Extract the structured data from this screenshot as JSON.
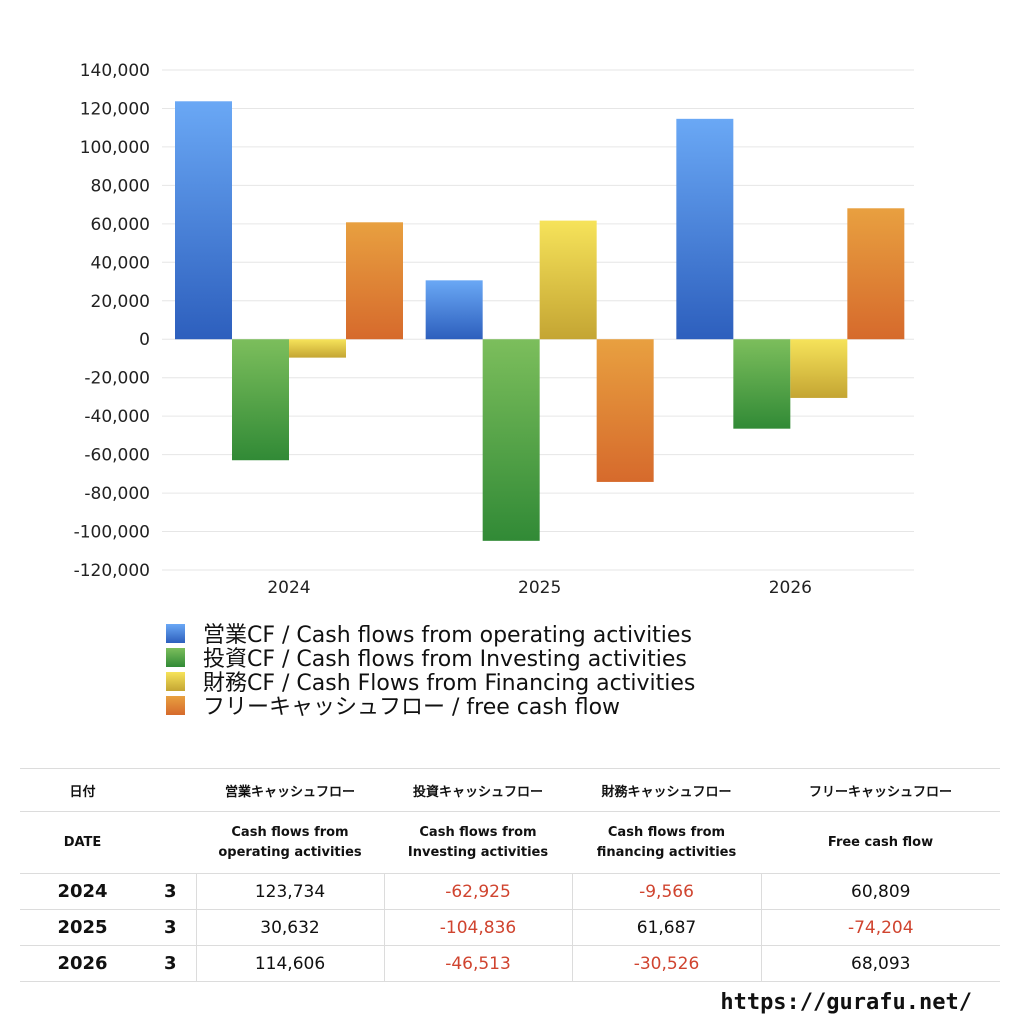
{
  "chart_data": {
    "type": "bar",
    "categories": [
      "2024",
      "2025",
      "2026"
    ],
    "ylim": [
      -120000,
      140000
    ],
    "yticks": [
      140000,
      120000,
      100000,
      80000,
      60000,
      40000,
      20000,
      0,
      -20000,
      -40000,
      -60000,
      -80000,
      -100000,
      -120000
    ],
    "ytick_labels": [
      "140,000",
      "120,000",
      "100,000",
      "80,000",
      "60,000",
      "40,000",
      "20,000",
      "0",
      "-20,000",
      "-40,000",
      "-60,000",
      "-80,000",
      "-100,000",
      "-120,000"
    ],
    "grid": true,
    "legend_position": "bottom-left",
    "series": [
      {
        "name": "営業CF / Cash flows from operating activities",
        "values": [
          123734,
          30632,
          114606
        ],
        "color_top": "#6aa8f5",
        "color_bottom": "#2d5fbd"
      },
      {
        "name": "投資CF / Cash flows from Investing activities",
        "values": [
          -62925,
          -104836,
          -46513
        ],
        "color_top": "#7cbe5c",
        "color_bottom": "#318a36"
      },
      {
        "name": "財務CF / Cash Flows from Financing activities",
        "values": [
          -9566,
          61687,
          -30526
        ],
        "color_top": "#f6e35a",
        "color_bottom": "#c4a533"
      },
      {
        "name": "フリーキャッシュフロー / free cash flow",
        "values": [
          60809,
          -74204,
          68093
        ],
        "color_top": "#e8a040",
        "color_bottom": "#d66a2c"
      }
    ]
  },
  "table": {
    "headers_jp": [
      "日付",
      "",
      "営業キャッシュフロー",
      "投資キャッシュフロー",
      "財務キャッシュフロー",
      "フリーキャッシュフロー"
    ],
    "headers_en": [
      "DATE",
      "",
      "Cash flows from\noperating activities",
      "Cash flows from\nInvesting activities",
      "Cash flows from\nfinancing activities",
      "Free cash flow"
    ],
    "rows": [
      {
        "year": "2024",
        "month": "3",
        "values": [
          "123,734",
          "-62,925",
          "-9,566",
          "60,809"
        ]
      },
      {
        "year": "2025",
        "month": "3",
        "values": [
          "30,632",
          "-104,836",
          "61,687",
          "-74,204"
        ]
      },
      {
        "year": "2026",
        "month": "3",
        "values": [
          "114,606",
          "-46,513",
          "-30,526",
          "68,093"
        ]
      }
    ],
    "negative_color": "#d0442f"
  },
  "footer": {
    "url": "https://gurafu.net/"
  }
}
